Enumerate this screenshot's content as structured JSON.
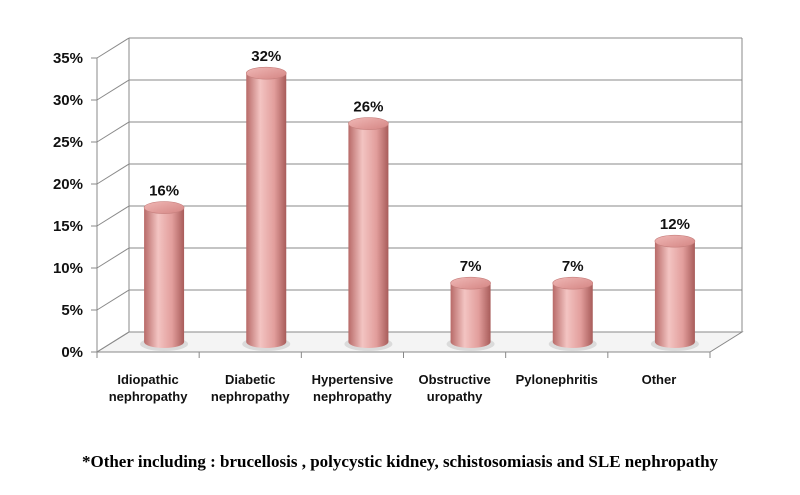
{
  "chart_data": {
    "type": "bar",
    "style": "3d-cylinder",
    "categories": [
      [
        "Idiopathic",
        "nephropathy"
      ],
      [
        "Diabetic",
        "nephropathy"
      ],
      [
        "Hypertensive",
        "nephropathy"
      ],
      [
        "Obstructive",
        "uropathy"
      ],
      [
        "Pylonephritis"
      ],
      [
        "Other"
      ]
    ],
    "values": [
      16,
      32,
      26,
      7,
      7,
      12
    ],
    "data_labels": [
      "16%",
      "32%",
      "26%",
      "7%",
      "7%",
      "12%"
    ],
    "ylim": [
      0,
      35
    ],
    "yticks": [
      0,
      5,
      10,
      15,
      20,
      25,
      30,
      35
    ],
    "ytick_labels": [
      "0%",
      "5%",
      "10%",
      "15%",
      "20%",
      "25%",
      "30%",
      "35%"
    ],
    "grid": true,
    "legend": "none",
    "bar_color": "#e29e9c",
    "bar_shade_color": "#b86a68"
  },
  "footnote": "*Other including : brucellosis , polycystic kidney, schistosomiasis and SLE nephropathy"
}
